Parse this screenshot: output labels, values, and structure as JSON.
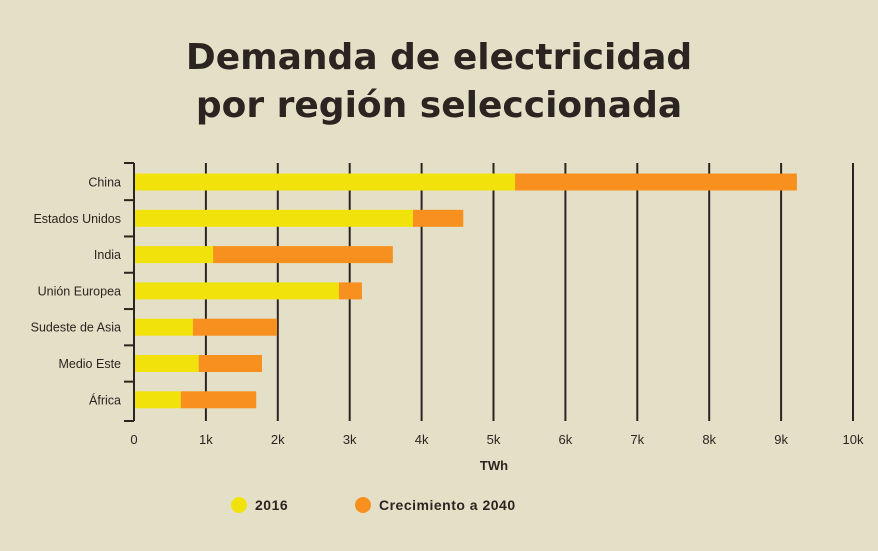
{
  "chart_data": {
    "type": "bar",
    "orientation": "horizontal",
    "stacked": true,
    "title_line1": "Demanda de electricidad",
    "title_line2": "por región seleccionada",
    "xlabel": "TWh",
    "ylabel": "",
    "xlim": [
      0,
      10000
    ],
    "x_ticks": [
      0,
      1000,
      2000,
      3000,
      4000,
      5000,
      6000,
      7000,
      8000,
      9000,
      10000
    ],
    "x_tick_labels": [
      "0",
      "1k",
      "2k",
      "3k",
      "4k",
      "5k",
      "6k",
      "7k",
      "8k",
      "9k",
      "10k"
    ],
    "grid": "vertical",
    "legend_position": "bottom",
    "categories": [
      "China",
      "Estados Unidos",
      "India",
      "Unión Europea",
      "Sudeste de Asia",
      "Medio Este",
      "África"
    ],
    "series": [
      {
        "name": "2016",
        "color": "#f2e20c",
        "values": [
          5300,
          3880,
          1100,
          2850,
          820,
          900,
          650
        ]
      },
      {
        "name": "Crecimiento a 2040",
        "color": "#f7901e",
        "values": [
          3920,
          700,
          2500,
          320,
          1170,
          880,
          1050
        ]
      }
    ]
  }
}
